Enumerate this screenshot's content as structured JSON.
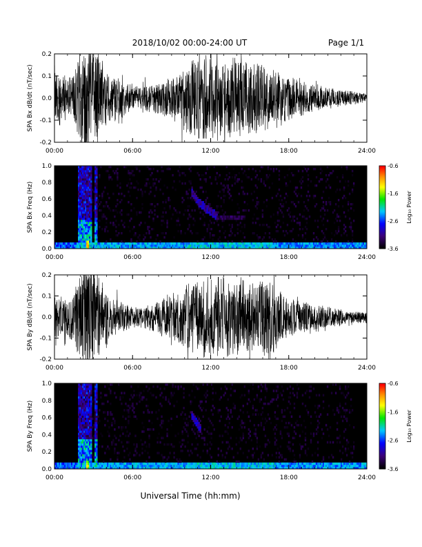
{
  "header": {
    "title": "2018/10/02  00:00-24:00 UT",
    "page": "Page 1/1"
  },
  "footer": {
    "xlabel": "Universal Time (hh:mm)"
  },
  "colors": {
    "background": "#ffffff",
    "trace": "#000000",
    "spec_bg": "#000000"
  },
  "chart_data": [
    {
      "type": "line",
      "title": "",
      "ylabel": "SPA Bx dB/dt (nT/sec)",
      "xlabel": "",
      "xlim": [
        0,
        24
      ],
      "ylim": [
        -0.2,
        0.2
      ],
      "x_ticks": [
        "00:00",
        "06:00",
        "12:00",
        "18:00",
        "24:00"
      ],
      "y_ticks": [
        "-0.2",
        "-0.1",
        "0.0",
        "0.1",
        "0.2"
      ],
      "envelope": {
        "x_hours": [
          0,
          0.5,
          1,
          1.5,
          1.8,
          2,
          2.5,
          3,
          3.5,
          4,
          4.5,
          5,
          6,
          7,
          8,
          8.5,
          9,
          9.5,
          10,
          10.5,
          11,
          11.5,
          12,
          12.5,
          13,
          13.5,
          14,
          14.5,
          15,
          15.5,
          16,
          16.5,
          17,
          17.5,
          18,
          19,
          20,
          21,
          22,
          23,
          24
        ],
        "amplitude": [
          0.15,
          0.12,
          0.09,
          0.11,
          0.2,
          0.25,
          0.25,
          0.25,
          0.2,
          0.12,
          0.11,
          0.1,
          0.05,
          0.07,
          0.07,
          0.08,
          0.1,
          0.12,
          0.15,
          0.17,
          0.18,
          0.2,
          0.2,
          0.2,
          0.2,
          0.19,
          0.18,
          0.17,
          0.17,
          0.16,
          0.15,
          0.14,
          0.12,
          0.13,
          0.1,
          0.08,
          0.06,
          0.05,
          0.04,
          0.03,
          0.02
        ]
      }
    },
    {
      "type": "heatmap",
      "title": "",
      "ylabel": "SPA Bx Freq (Hz)",
      "xlabel": "",
      "xlim": [
        0,
        24
      ],
      "ylim": [
        0,
        1.0
      ],
      "x_ticks": [
        "00:00",
        "06:00",
        "12:00",
        "18:00",
        "24:00"
      ],
      "y_ticks": [
        "0.0",
        "0.2",
        "0.4",
        "0.6",
        "0.8",
        "1.0"
      ],
      "colorbar": {
        "label": "Log₁₀ Power",
        "min": -3.6,
        "max": -0.6,
        "ticks": [
          "-0.6",
          "-1.6",
          "-2.6",
          "-3.6"
        ]
      },
      "features": [
        {
          "kind": "broadband_burst",
          "start_h": 1.8,
          "end_h": 2.9,
          "max_freq_hz": 1.0,
          "peak_log_power": -0.9
        },
        {
          "kind": "broadband_burst",
          "start_h": 3.1,
          "end_h": 3.3,
          "max_freq_hz": 1.0,
          "peak_log_power": -2.4
        },
        {
          "kind": "low_freq_band",
          "max_freq_hz": 0.05,
          "log_power": -2.0
        },
        {
          "kind": "falling_tone",
          "start_h": 10.5,
          "end_h": 12.5,
          "freq_start_hz": 0.75,
          "freq_end_hz": 0.4,
          "log_power": -2.8
        },
        {
          "kind": "band",
          "start_h": 12.5,
          "end_h": 14.5,
          "freq_hz": 0.37,
          "log_power": -3.1
        }
      ]
    },
    {
      "type": "line",
      "title": "",
      "ylabel": "SPA By dB/dt (nT/sec)",
      "xlabel": "",
      "xlim": [
        0,
        24
      ],
      "ylim": [
        -0.2,
        0.2
      ],
      "x_ticks": [
        "00:00",
        "06:00",
        "12:00",
        "18:00",
        "24:00"
      ],
      "y_ticks": [
        "-0.2",
        "-0.1",
        "0.0",
        "0.1",
        "0.2"
      ],
      "envelope": {
        "x_hours": [
          0,
          0.5,
          1,
          1.5,
          1.8,
          2,
          2.5,
          3,
          3.5,
          4,
          4.5,
          5,
          6,
          7,
          8,
          8.5,
          9,
          9.5,
          10,
          10.5,
          11,
          11.5,
          12,
          12.5,
          13,
          13.5,
          14,
          14.5,
          15,
          15.5,
          16,
          16.5,
          17,
          17.5,
          18,
          19,
          20,
          21,
          22,
          23,
          24
        ],
        "amplitude": [
          0.12,
          0.1,
          0.1,
          0.12,
          0.2,
          0.25,
          0.25,
          0.25,
          0.2,
          0.12,
          0.09,
          0.08,
          0.05,
          0.06,
          0.08,
          0.1,
          0.12,
          0.14,
          0.15,
          0.17,
          0.18,
          0.2,
          0.2,
          0.2,
          0.2,
          0.19,
          0.18,
          0.18,
          0.17,
          0.17,
          0.18,
          0.2,
          0.16,
          0.12,
          0.1,
          0.08,
          0.06,
          0.05,
          0.04,
          0.03,
          0.03
        ]
      }
    },
    {
      "type": "heatmap",
      "title": "",
      "ylabel": "SPA By Freq (Hz)",
      "xlabel": "",
      "xlim": [
        0,
        24
      ],
      "ylim": [
        0,
        1.0
      ],
      "x_ticks": [
        "00:00",
        "06:00",
        "12:00",
        "18:00",
        "24:00"
      ],
      "y_ticks": [
        "0.0",
        "0.2",
        "0.4",
        "0.6",
        "0.8",
        "1.0"
      ],
      "colorbar": {
        "label": "Log₁₀ Power",
        "min": -3.6,
        "max": -0.6,
        "ticks": [
          "-0.6",
          "-1.6",
          "-2.6",
          "-3.6"
        ]
      },
      "features": [
        {
          "kind": "broadband_burst",
          "start_h": 1.8,
          "end_h": 2.9,
          "max_freq_hz": 1.0,
          "peak_log_power": -0.9
        },
        {
          "kind": "broadband_burst",
          "start_h": 3.1,
          "end_h": 3.3,
          "max_freq_hz": 1.0,
          "peak_log_power": -2.4
        },
        {
          "kind": "low_freq_band",
          "max_freq_hz": 0.06,
          "log_power": -2.0
        },
        {
          "kind": "falling_tone",
          "start_h": 10.5,
          "end_h": 11.3,
          "freq_start_hz": 0.7,
          "freq_end_hz": 0.47,
          "log_power": -2.7
        }
      ]
    }
  ]
}
